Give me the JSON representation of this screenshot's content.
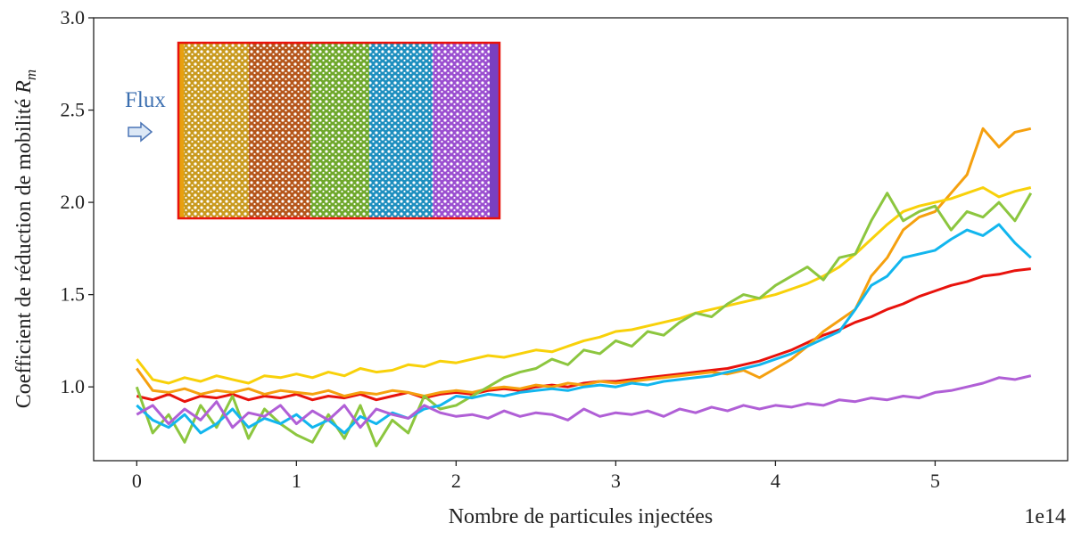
{
  "chart_data": {
    "type": "line",
    "x_label": "Nombre de particules injectées",
    "x_offset_label": "1e14",
    "y_label": "Coefficient de réduction de mobilité",
    "y_label_symbol": "R",
    "y_label_subscript": "m",
    "inset_label": "Flux",
    "xlim": [
      -0.27,
      5.83
    ],
    "ylim": [
      0.6,
      3.0
    ],
    "xticks": [
      0,
      1,
      2,
      3,
      4,
      5
    ],
    "yticks": [
      {
        "value": 1,
        "label": "1.0"
      },
      1.5,
      {
        "value": 2,
        "label": "2.0"
      },
      2.5,
      {
        "value": 3,
        "label": "3.0"
      }
    ],
    "x": [
      0.0,
      0.1,
      0.2,
      0.3,
      0.4,
      0.5,
      0.6,
      0.7,
      0.8,
      0.9,
      1.0,
      1.1,
      1.2,
      1.3,
      1.4,
      1.5,
      1.6,
      1.7,
      1.8,
      1.9,
      2.0,
      2.1,
      2.2,
      2.3,
      2.4,
      2.5,
      2.6,
      2.7,
      2.8,
      2.9,
      3.0,
      3.1,
      3.2,
      3.3,
      3.4,
      3.5,
      3.6,
      3.7,
      3.8,
      3.9,
      4.0,
      4.1,
      4.2,
      4.3,
      4.4,
      4.5,
      4.6,
      4.7,
      4.8,
      4.9,
      5.0,
      5.1,
      5.2,
      5.3,
      5.4,
      5.5,
      5.6
    ],
    "series": [
      {
        "color": "#e8120c",
        "values": [
          0.95,
          0.93,
          0.96,
          0.92,
          0.95,
          0.94,
          0.96,
          0.93,
          0.95,
          0.94,
          0.96,
          0.93,
          0.95,
          0.94,
          0.96,
          0.93,
          0.95,
          0.97,
          0.94,
          0.96,
          0.97,
          0.96,
          0.98,
          0.99,
          0.98,
          1.0,
          1.01,
          1.0,
          1.02,
          1.03,
          1.03,
          1.04,
          1.05,
          1.06,
          1.07,
          1.08,
          1.09,
          1.1,
          1.12,
          1.14,
          1.17,
          1.2,
          1.24,
          1.28,
          1.31,
          1.35,
          1.38,
          1.42,
          1.45,
          1.49,
          1.52,
          1.55,
          1.57,
          1.6,
          1.61,
          1.63,
          1.64
        ]
      },
      {
        "color": "#f5a00f",
        "values": [
          1.1,
          0.98,
          0.97,
          0.99,
          0.96,
          0.98,
          0.97,
          0.99,
          0.96,
          0.98,
          0.97,
          0.96,
          0.98,
          0.95,
          0.97,
          0.96,
          0.98,
          0.97,
          0.95,
          0.97,
          0.98,
          0.97,
          0.99,
          1.0,
          0.99,
          1.01,
          1.0,
          1.02,
          1.01,
          1.03,
          1.02,
          1.03,
          1.04,
          1.05,
          1.06,
          1.07,
          1.08,
          1.07,
          1.09,
          1.05,
          1.1,
          1.15,
          1.22,
          1.3,
          1.36,
          1.42,
          1.6,
          1.7,
          1.85,
          1.92,
          1.95,
          2.05,
          2.15,
          2.4,
          2.3,
          2.38,
          2.4
        ]
      },
      {
        "color": "#f8d10a",
        "values": [
          1.15,
          1.04,
          1.02,
          1.05,
          1.03,
          1.06,
          1.04,
          1.02,
          1.06,
          1.05,
          1.07,
          1.05,
          1.08,
          1.06,
          1.1,
          1.08,
          1.09,
          1.12,
          1.11,
          1.14,
          1.13,
          1.15,
          1.17,
          1.16,
          1.18,
          1.2,
          1.19,
          1.22,
          1.25,
          1.27,
          1.3,
          1.31,
          1.33,
          1.35,
          1.37,
          1.4,
          1.42,
          1.44,
          1.46,
          1.48,
          1.5,
          1.53,
          1.56,
          1.6,
          1.65,
          1.72,
          1.8,
          1.88,
          1.95,
          1.98,
          2.0,
          2.02,
          2.05,
          2.08,
          2.03,
          2.06,
          2.08
        ]
      },
      {
        "color": "#8cc63f",
        "values": [
          1.0,
          0.75,
          0.85,
          0.7,
          0.9,
          0.78,
          0.95,
          0.72,
          0.88,
          0.8,
          0.74,
          0.7,
          0.85,
          0.72,
          0.9,
          0.68,
          0.82,
          0.75,
          0.95,
          0.88,
          0.9,
          0.95,
          1.0,
          1.05,
          1.08,
          1.1,
          1.15,
          1.12,
          1.2,
          1.18,
          1.25,
          1.22,
          1.3,
          1.28,
          1.35,
          1.4,
          1.38,
          1.45,
          1.5,
          1.48,
          1.55,
          1.6,
          1.65,
          1.58,
          1.7,
          1.72,
          1.9,
          2.05,
          1.9,
          1.95,
          1.98,
          1.85,
          1.95,
          1.92,
          2.0,
          1.9,
          2.05
        ]
      },
      {
        "color": "#12b6ee",
        "values": [
          0.9,
          0.82,
          0.78,
          0.85,
          0.75,
          0.8,
          0.88,
          0.78,
          0.83,
          0.8,
          0.85,
          0.78,
          0.82,
          0.75,
          0.84,
          0.8,
          0.86,
          0.83,
          0.88,
          0.9,
          0.95,
          0.94,
          0.96,
          0.95,
          0.97,
          0.98,
          0.99,
          0.98,
          1.0,
          1.01,
          1.0,
          1.02,
          1.01,
          1.03,
          1.04,
          1.05,
          1.06,
          1.08,
          1.1,
          1.12,
          1.15,
          1.18,
          1.22,
          1.26,
          1.3,
          1.42,
          1.55,
          1.6,
          1.7,
          1.72,
          1.74,
          1.8,
          1.85,
          1.82,
          1.88,
          1.78,
          1.7
        ]
      },
      {
        "color": "#b05fd6",
        "values": [
          0.85,
          0.9,
          0.8,
          0.88,
          0.82,
          0.92,
          0.78,
          0.86,
          0.84,
          0.9,
          0.8,
          0.87,
          0.82,
          0.9,
          0.78,
          0.88,
          0.85,
          0.83,
          0.9,
          0.86,
          0.84,
          0.85,
          0.83,
          0.87,
          0.84,
          0.86,
          0.85,
          0.82,
          0.88,
          0.84,
          0.86,
          0.85,
          0.87,
          0.84,
          0.88,
          0.86,
          0.89,
          0.87,
          0.9,
          0.88,
          0.9,
          0.89,
          0.91,
          0.9,
          0.93,
          0.92,
          0.94,
          0.93,
          0.95,
          0.94,
          0.97,
          0.98,
          1.0,
          1.02,
          1.05,
          1.04,
          1.06
        ]
      }
    ]
  }
}
